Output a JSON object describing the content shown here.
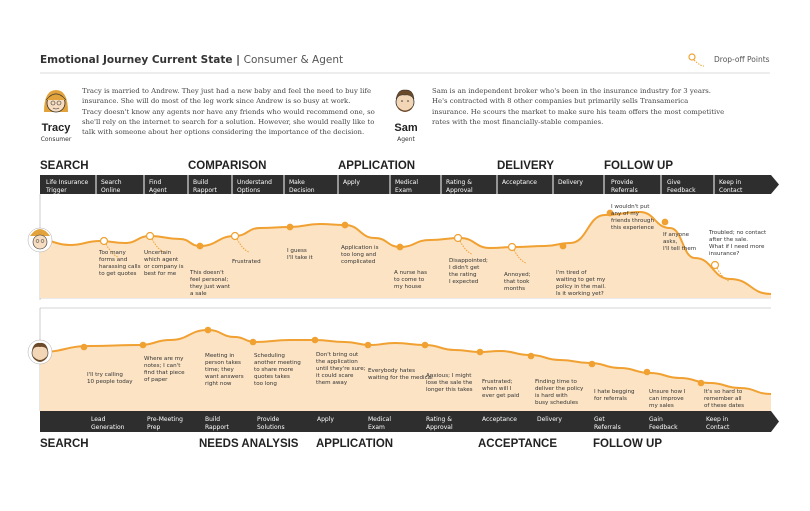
{
  "header": {
    "title": "Emotional Journey Current State",
    "subtitle": "Consumer & Agent",
    "legend_label": "Drop-off Points"
  },
  "colors": {
    "accent": "#f0a132",
    "fill": "#fbe3c4",
    "dark": "#2e2e2e",
    "white": "#ffffff"
  },
  "consumer": {
    "name": "Tracy",
    "role": "Consumer",
    "bio": [
      "Tracy is married to Andrew. They just had a new baby and feel the need to buy life",
      "insurance. She will do most of the leg work since Andrew is so busy at work.",
      "Tracy doesn't know any agents nor have any friends who would recommend one, so",
      "she'll rely on the internet to search for a solution. However, she would really like to",
      "talk with someone about her options considering the importance of the decision."
    ],
    "phases": [
      "SEARCH",
      "COMPARISON",
      "APPLICATION",
      "DELIVERY",
      "FOLLOW UP"
    ],
    "stages": [
      [
        "Life Insurance",
        "Trigger"
      ],
      [
        "Search",
        "Online"
      ],
      [
        "Find",
        "Agent"
      ],
      [
        "Build",
        "Rapport"
      ],
      [
        "Understand",
        "Options"
      ],
      [
        "Make",
        "Decision"
      ],
      [
        "Apply"
      ],
      [
        "Medical",
        "Exam"
      ],
      [
        "Rating &",
        "Approval"
      ],
      [
        "Acceptance"
      ],
      [
        "Delivery"
      ],
      [
        "Provide",
        "Referrals"
      ],
      [
        "Give",
        "Feedback"
      ],
      [
        "Keep in",
        "Contact"
      ]
    ],
    "notes": [
      [
        "Too many",
        "forms and",
        "harassing calls",
        "to get quotes"
      ],
      [
        "Uncertain",
        "which agent",
        "or company is",
        "best for me"
      ],
      [
        "This doesn't",
        "feel personal;",
        "they just want",
        "a sale"
      ],
      [
        "Frustrated"
      ],
      [
        "I guess",
        "I'll take it"
      ],
      [
        "Application is",
        "too long and",
        "complicated"
      ],
      [
        "A nurse has",
        "to come to",
        "my house"
      ],
      [
        "Disappointed;",
        "I didn't get",
        "the rating",
        "I expected"
      ],
      [
        "Annoyed;",
        "that took",
        "months"
      ],
      [
        "I'm tired of",
        "waiting to get my",
        "policy in the mail.",
        "Is it working yet?"
      ],
      [
        "I wouldn't put",
        "any of my",
        "friends through",
        "this experience"
      ],
      [
        "If anyone",
        "asks,",
        "I'll tell them"
      ],
      [
        "Troubled; no contact",
        "after the sale.",
        "What if I need more",
        "insurance?"
      ]
    ]
  },
  "agent": {
    "name": "Sam",
    "role": "Agent",
    "bio": [
      "Sam is an independent broker who's been in the insurance industry for 3 years.",
      "He's contracted with 8 other companies but primarily sells Transamerica",
      "insurance. He scours the market to make sure his team offers the most competitive",
      "rates with the most financially-stable companies."
    ],
    "phases": [
      "SEARCH",
      "NEEDS ANALYSIS",
      "APPLICATION",
      "ACCEPTANCE",
      "FOLLOW UP"
    ],
    "stages": [
      [
        "Lead",
        "Generation"
      ],
      [
        "Pre-Meeting",
        "Prep"
      ],
      [
        "Build",
        "Rapport"
      ],
      [
        "Provide",
        "Solutions"
      ],
      [
        "Apply"
      ],
      [
        "Medical",
        "Exam"
      ],
      [
        "Rating &",
        "Approval"
      ],
      [
        "Acceptance"
      ],
      [
        "Delivery"
      ],
      [
        "Get",
        "Referrals"
      ],
      [
        "Gain",
        "Feedback"
      ],
      [
        "Keep in",
        "Contact"
      ]
    ],
    "notes": [
      [
        "I'll try calling",
        "10 people today"
      ],
      [
        "Where are my",
        "notes; I can't",
        "find that piece",
        "of paper"
      ],
      [
        "Meeting in",
        "person takes",
        "time; they",
        "want answers",
        "right now"
      ],
      [
        "Scheduling",
        "another meeting",
        "to share more",
        "quotes takes",
        "too long"
      ],
      [
        "Don't bring out",
        "the application",
        "until they're sure;",
        "it could scare",
        "them away"
      ],
      [
        "Everybody hates",
        "waiting for the medical"
      ],
      [
        "Anxious; I might",
        "lose the sale the",
        "longer this takes"
      ],
      [
        "Frustrated;",
        "when will I",
        "ever get paid"
      ],
      [
        "Finding time to",
        "deliver the policy",
        "is hard with",
        "busy schedules"
      ],
      [
        "I hate begging",
        "for referrals"
      ],
      [
        "Unsure how I",
        "can improve",
        "my sales"
      ],
      [
        "It's so hard to",
        "remember all",
        "of these dates"
      ]
    ]
  }
}
